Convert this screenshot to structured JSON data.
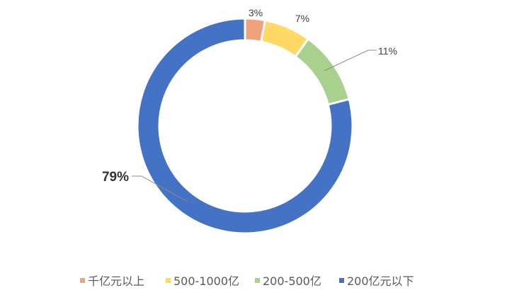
{
  "chart_data": {
    "type": "pie",
    "donut": true,
    "title": "",
    "categories": [
      "千亿元以上",
      "500-1000亿",
      "200-500亿",
      "200亿元以下"
    ],
    "values": [
      3,
      7,
      11,
      79
    ],
    "labels": [
      "3%",
      "7%",
      "11%",
      "79%"
    ],
    "colors": [
      "#F0A27C",
      "#FFD966",
      "#A9D18E",
      "#4472C4"
    ],
    "start": "top",
    "direction": "clockwise",
    "legend_position": "bottom"
  }
}
